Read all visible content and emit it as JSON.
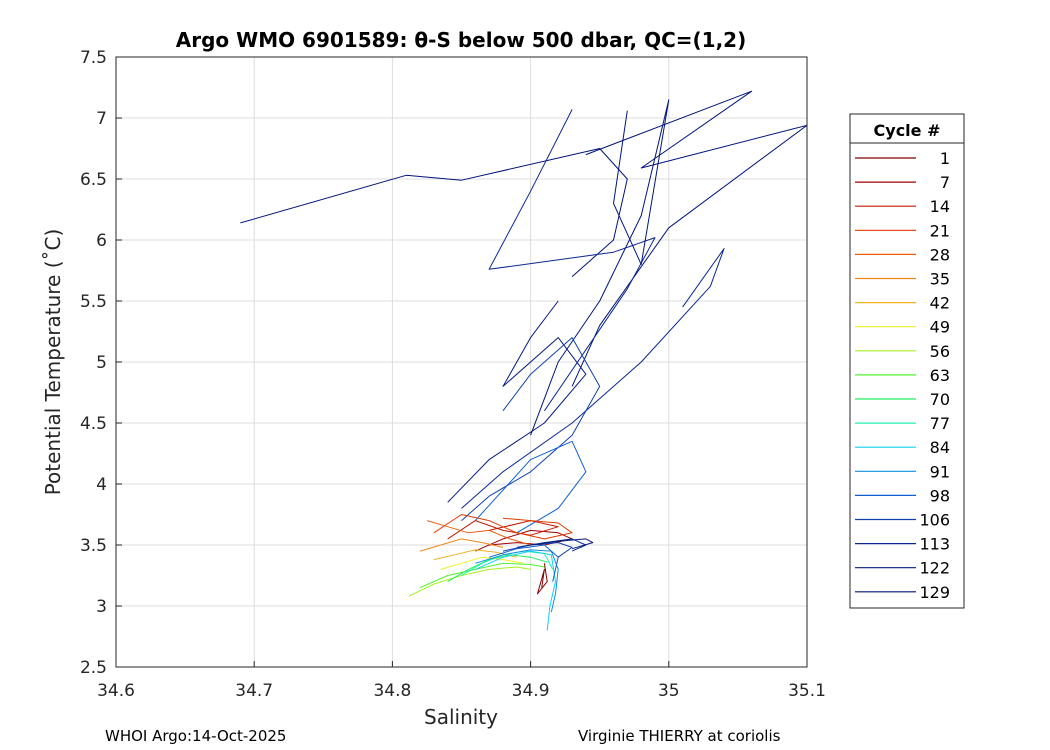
{
  "chart_data": {
    "type": "line",
    "title": "Argo WMO 6901589: θ-S below 500 dbar,  QC=(1,2)",
    "xlabel": "Salinity",
    "ylabel": "Potential Temperature (˚C)",
    "xlim": [
      34.6,
      35.1
    ],
    "ylim": [
      2.5,
      7.5
    ],
    "xticks": [
      34.6,
      34.7,
      34.8,
      34.9,
      35,
      35.1
    ],
    "xtick_labels": [
      "34.6",
      "34.7",
      "34.8",
      "34.9",
      "35",
      "35.1"
    ],
    "yticks": [
      2.5,
      3,
      3.5,
      4,
      4.5,
      5,
      5.5,
      6,
      6.5,
      7,
      7.5
    ],
    "ytick_labels": [
      "2.5",
      "3",
      "3.5",
      "4",
      "4.5",
      "5",
      "5.5",
      "6",
      "6.5",
      "7",
      "7.5"
    ],
    "grid": true,
    "legend": {
      "title": "Cycle #",
      "placement": "outside-right",
      "entries": [
        {
          "name": "1",
          "color": "#7f0000"
        },
        {
          "name": "7",
          "color": "#a00000"
        },
        {
          "name": "14",
          "color": "#c41a00"
        },
        {
          "name": "21",
          "color": "#e03c00"
        },
        {
          "name": "28",
          "color": "#ee6010"
        },
        {
          "name": "35",
          "color": "#f08818"
        },
        {
          "name": "42",
          "color": "#f0b020"
        },
        {
          "name": "49",
          "color": "#f0f020"
        },
        {
          "name": "56",
          "color": "#a8f020"
        },
        {
          "name": "63",
          "color": "#50f030"
        },
        {
          "name": "70",
          "color": "#20f060"
        },
        {
          "name": "77",
          "color": "#20f0b0"
        },
        {
          "name": "84",
          "color": "#10d0f0"
        },
        {
          "name": "91",
          "color": "#1090e0"
        },
        {
          "name": "98",
          "color": "#1060d0"
        },
        {
          "name": "106",
          "color": "#1040b0"
        },
        {
          "name": "113",
          "color": "#0a2890"
        },
        {
          "name": "122",
          "color": "#061c80"
        },
        {
          "name": "129",
          "color": "#001478"
        }
      ]
    },
    "series": [
      {
        "color": "#001478",
        "x": [
          34.69,
          34.81,
          34.85,
          34.95,
          34.97,
          34.96,
          34.93
        ],
        "y": [
          6.14,
          6.53,
          6.49,
          6.75,
          6.5,
          6.0,
          5.7
        ]
      },
      {
        "color": "#001478",
        "x": [
          34.94,
          35.06,
          34.98,
          35.1,
          35.0,
          34.95,
          34.93
        ],
        "y": [
          6.7,
          7.22,
          6.59,
          6.94,
          6.1,
          5.3,
          4.8
        ]
      },
      {
        "color": "#0a2890",
        "x": [
          34.93,
          34.9,
          34.87,
          34.96,
          34.99,
          34.97,
          34.94,
          34.91
        ],
        "y": [
          7.07,
          6.4,
          5.76,
          5.9,
          6.02,
          5.6,
          5.1,
          4.6
        ]
      },
      {
        "color": "#001478",
        "x": [
          34.97,
          34.96,
          34.98,
          35.0,
          34.98,
          34.95,
          34.92,
          34.9
        ],
        "y": [
          7.06,
          6.3,
          5.8,
          7.15,
          6.2,
          5.5,
          5.0,
          4.4
        ]
      },
      {
        "color": "#061c80",
        "x": [
          34.92,
          34.9,
          34.88,
          34.92,
          34.94,
          34.91,
          34.87,
          34.84
        ],
        "y": [
          5.5,
          5.2,
          4.8,
          5.2,
          4.9,
          4.5,
          4.2,
          3.85
        ]
      },
      {
        "color": "#0a2890",
        "x": [
          35.01,
          35.04,
          35.03,
          34.98,
          34.93,
          34.88,
          34.85
        ],
        "y": [
          5.45,
          5.93,
          5.62,
          5.0,
          4.5,
          4.1,
          3.8
        ]
      },
      {
        "color": "#1040b0",
        "x": [
          34.88,
          34.9,
          34.93,
          34.95,
          34.93,
          34.9,
          34.87,
          34.85
        ],
        "y": [
          4.6,
          4.9,
          5.2,
          4.8,
          4.4,
          4.1,
          3.9,
          3.7
        ]
      },
      {
        "color": "#1060d0",
        "x": [
          34.86,
          34.88,
          34.9,
          34.93,
          34.94,
          34.92,
          34.89
        ],
        "y": [
          3.7,
          3.95,
          4.2,
          4.35,
          4.1,
          3.8,
          3.6
        ]
      },
      {
        "color": "#7f0000",
        "x": [
          34.91,
          34.912,
          34.905,
          34.91,
          34.908
        ],
        "y": [
          3.35,
          3.2,
          3.1,
          3.3,
          3.15
        ]
      },
      {
        "color": "#a00000",
        "x": [
          34.86,
          34.88,
          34.9,
          34.92,
          34.93,
          34.91,
          34.89,
          34.87
        ],
        "y": [
          3.45,
          3.55,
          3.62,
          3.6,
          3.55,
          3.5,
          3.52,
          3.5
        ]
      },
      {
        "color": "#c41a00",
        "x": [
          34.84,
          34.86,
          34.88,
          34.9,
          34.92,
          34.9,
          34.87
        ],
        "y": [
          3.55,
          3.7,
          3.62,
          3.58,
          3.65,
          3.7,
          3.62
        ]
      },
      {
        "color": "#e03c00",
        "x": [
          34.83,
          34.85,
          34.87,
          34.89,
          34.91,
          34.93,
          34.92,
          34.88
        ],
        "y": [
          3.6,
          3.75,
          3.7,
          3.6,
          3.55,
          3.6,
          3.68,
          3.72
        ]
      },
      {
        "color": "#ee6010",
        "x": [
          34.825,
          34.84,
          34.855,
          34.87,
          34.885,
          34.9
        ],
        "y": [
          3.7,
          3.65,
          3.6,
          3.62,
          3.55,
          3.5
        ]
      },
      {
        "color": "#f08818",
        "x": [
          34.82,
          34.835,
          34.85,
          34.865,
          34.88
        ],
        "y": [
          3.45,
          3.5,
          3.55,
          3.52,
          3.48
        ]
      },
      {
        "color": "#f0b020",
        "x": [
          34.83,
          34.845,
          34.86,
          34.875,
          34.89
        ],
        "y": [
          3.38,
          3.42,
          3.46,
          3.44,
          3.4
        ]
      },
      {
        "color": "#f0f020",
        "x": [
          34.835,
          34.85,
          34.865,
          34.88,
          34.895
        ],
        "y": [
          3.3,
          3.35,
          3.4,
          3.38,
          3.35
        ]
      },
      {
        "color": "#a8f020",
        "x": [
          34.812,
          34.83,
          34.85,
          34.87,
          34.89,
          34.9
        ],
        "y": [
          3.08,
          3.18,
          3.25,
          3.3,
          3.32,
          3.3
        ]
      },
      {
        "color": "#50f030",
        "x": [
          34.82,
          34.84,
          34.86,
          34.88,
          34.9,
          34.91
        ],
        "y": [
          3.15,
          3.25,
          3.3,
          3.35,
          3.34,
          3.32
        ]
      },
      {
        "color": "#20f060",
        "x": [
          34.84,
          34.855,
          34.87,
          34.885,
          34.9,
          34.912
        ],
        "y": [
          3.2,
          3.3,
          3.38,
          3.42,
          3.4,
          3.36
        ]
      },
      {
        "color": "#20f0b0",
        "x": [
          34.85,
          34.865,
          34.88,
          34.895,
          34.91,
          34.916
        ],
        "y": [
          3.25,
          3.35,
          3.42,
          3.45,
          3.43,
          3.3
        ]
      },
      {
        "color": "#10d0f0",
        "x": [
          34.86,
          34.88,
          34.9,
          34.915,
          34.918,
          34.914,
          34.912
        ],
        "y": [
          3.3,
          3.4,
          3.45,
          3.42,
          3.2,
          3.0,
          2.8
        ]
      },
      {
        "color": "#1090e0",
        "x": [
          34.86,
          34.88,
          34.9,
          34.915,
          34.92,
          34.918,
          34.915
        ],
        "y": [
          3.35,
          3.42,
          3.46,
          3.45,
          3.3,
          3.1,
          2.95
        ]
      },
      {
        "color": "#1060d0",
        "x": [
          34.87,
          34.89,
          34.91,
          34.92,
          34.916
        ],
        "y": [
          3.4,
          3.47,
          3.5,
          3.4,
          3.2
        ]
      },
      {
        "color": "#1040b0",
        "x": [
          34.88,
          34.9,
          34.92,
          34.93,
          34.92
        ],
        "y": [
          3.45,
          3.5,
          3.52,
          3.48,
          3.4
        ]
      },
      {
        "color": "#0a2890",
        "x": [
          34.89,
          34.91,
          34.93,
          34.94,
          34.93
        ],
        "y": [
          3.48,
          3.52,
          3.55,
          3.5,
          3.45
        ]
      },
      {
        "color": "#061c80",
        "x": [
          34.9,
          34.92,
          34.94,
          34.945,
          34.93
        ],
        "y": [
          3.5,
          3.53,
          3.55,
          3.52,
          3.47
        ]
      }
    ],
    "footer": {
      "left": "WHOI Argo:14-Oct-2025",
      "right": "Virginie THIERRY at coriolis"
    }
  }
}
